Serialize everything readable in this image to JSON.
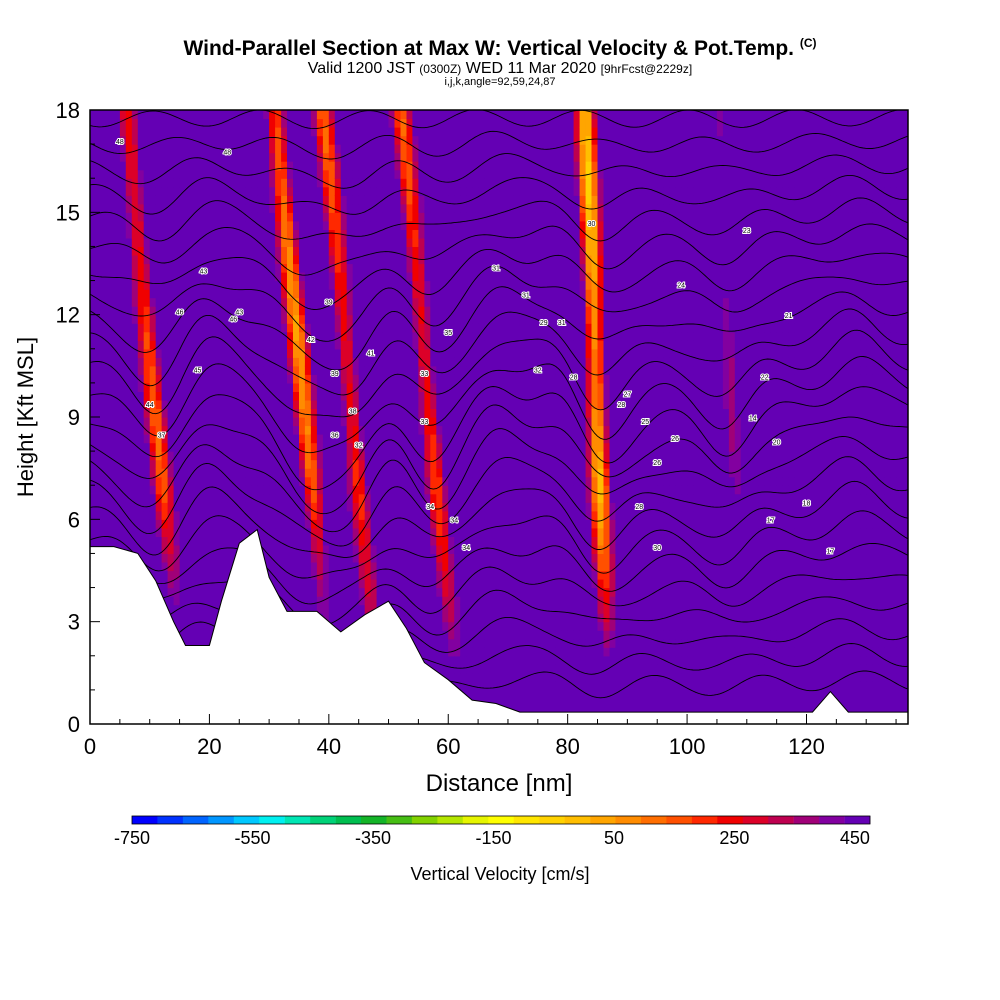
{
  "chart_data": {
    "type": "heatmap",
    "title": "Wind-Parallel Section at Max W: Vertical Velocity & Pot.Temp.",
    "title_mark": "(C)",
    "subtitle": {
      "valid": "Valid 1200 JST",
      "utc": "(0300Z)",
      "date": "WED 11 Mar 2020",
      "forecast": "[9hrFcst@2229z]"
    },
    "params": "i,j,k,angle=92,59,24,87",
    "xlabel": "Distance [nm]",
    "ylabel": "Height [Kft MSL]",
    "xlim": [
      0,
      137
    ],
    "ylim": [
      0,
      18
    ],
    "x_ticks": [
      0,
      20,
      40,
      60,
      80,
      100,
      120
    ],
    "y_ticks": [
      0,
      3,
      6,
      9,
      12,
      15,
      18
    ],
    "colorbar": {
      "label": "Vertical Velocity [cm/s]",
      "tick_labels": [
        "-750",
        "-550",
        "-350",
        "-150",
        "50",
        "250",
        "450"
      ],
      "min": -750,
      "max": 475,
      "step": 25,
      "colors": [
        "#0000ff",
        "#0032ff",
        "#0064ff",
        "#0096ff",
        "#00c8ff",
        "#00f0f0",
        "#00e6b4",
        "#00d278",
        "#00be50",
        "#14b428",
        "#46be14",
        "#82d200",
        "#b4e600",
        "#e6f500",
        "#ffff00",
        "#ffe600",
        "#ffd200",
        "#ffbe00",
        "#ffa500",
        "#ff8c00",
        "#ff6e00",
        "#ff5000",
        "#ff2800",
        "#f00000",
        "#dc0028",
        "#be0050",
        "#a00078",
        "#8200a0",
        "#6400b4"
      ]
    },
    "updrafts": [
      {
        "x": 19,
        "peak": 420
      },
      {
        "x": 51,
        "peak": 300
      },
      {
        "x": 68,
        "peak": 150
      },
      {
        "x": 79,
        "peak": 150
      },
      {
        "x": 111,
        "peak": 250
      },
      {
        "x": 128,
        "peak": 150
      }
    ],
    "downdrafts": [
      {
        "x": 11,
        "peak": -250
      },
      {
        "x": 36,
        "peak": -300
      },
      {
        "x": 44,
        "peak": -250
      },
      {
        "x": 57,
        "peak": -250
      },
      {
        "x": 85,
        "peak": -350
      },
      {
        "x": 108,
        "peak": -150
      }
    ],
    "terrain": [
      [
        0,
        5.2
      ],
      [
        4,
        5.2
      ],
      [
        8,
        5.0
      ],
      [
        11,
        4.2
      ],
      [
        14,
        3.0
      ],
      [
        16,
        2.3
      ],
      [
        20,
        2.3
      ],
      [
        22,
        3.6
      ],
      [
        25,
        5.3
      ],
      [
        28,
        5.7
      ],
      [
        30,
        4.3
      ],
      [
        33,
        3.3
      ],
      [
        38,
        3.3
      ],
      [
        42,
        2.7
      ],
      [
        46,
        3.2
      ],
      [
        50,
        3.6
      ],
      [
        53,
        2.8
      ],
      [
        56,
        1.8
      ],
      [
        60,
        1.3
      ],
      [
        64,
        0.7
      ],
      [
        68,
        0.6
      ],
      [
        72,
        0.35
      ],
      [
        80,
        0.35
      ],
      [
        100,
        0.35
      ],
      [
        121,
        0.35
      ],
      [
        124,
        0.95
      ],
      [
        127,
        0.35
      ],
      [
        137,
        0.35
      ]
    ],
    "theta_contour_labels": [
      "48",
      "48",
      "46",
      "43",
      "46",
      "45",
      "43",
      "44",
      "39",
      "41",
      "42",
      "39",
      "38",
      "36",
      "32",
      "37",
      "35",
      "33",
      "33",
      "34",
      "34",
      "34",
      "31",
      "31",
      "29",
      "31",
      "32",
      "30",
      "28",
      "28",
      "26",
      "26",
      "28",
      "30",
      "27",
      "25",
      "24",
      "23",
      "22",
      "21",
      "20",
      "14",
      "18",
      "17",
      "17"
    ]
  }
}
